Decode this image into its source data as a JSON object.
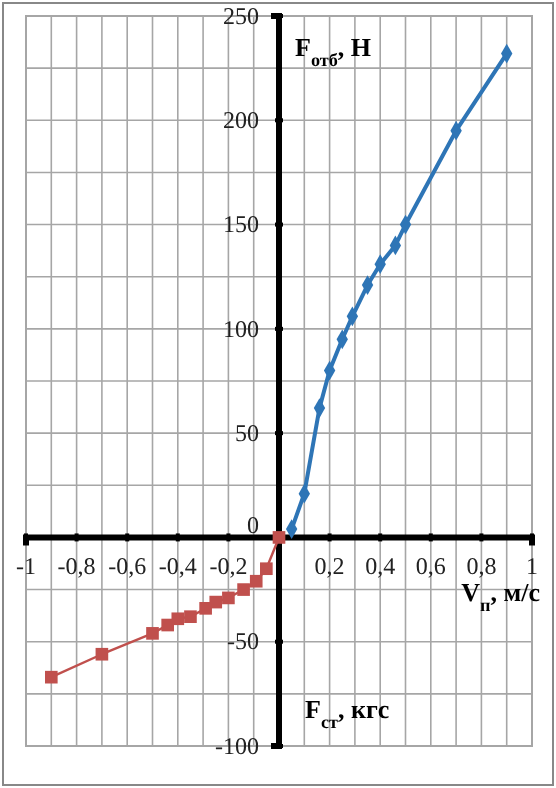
{
  "chart_data": {
    "type": "line",
    "ylabel": "F$_{отб}$, Н",
    "xlabel": "V$_{п}$, м/с",
    "annotations": [
      "F$_{ст}$, кгс"
    ],
    "xlim": [
      -1,
      1
    ],
    "ylim": [
      -100,
      250
    ],
    "xticks": [
      {
        "value": -1,
        "label": "-1"
      },
      {
        "value": -0.8,
        "label": "-0,8"
      },
      {
        "value": -0.6,
        "label": "-0,6"
      },
      {
        "value": -0.4,
        "label": "-0,4"
      },
      {
        "value": -0.2,
        "label": "-0,2"
      },
      {
        "value": 0,
        "label": null
      },
      {
        "value": 0.2,
        "label": "0,2"
      },
      {
        "value": 0.4,
        "label": "0,4"
      },
      {
        "value": 0.6,
        "label": "0,6"
      },
      {
        "value": 0.8,
        "label": "0,8"
      },
      {
        "value": 1,
        "label": "1"
      }
    ],
    "yticks": [
      -100,
      -50,
      0,
      50,
      100,
      150,
      200,
      250
    ],
    "grid": true,
    "line_style": "solid",
    "series": [
      {
        "color": "#2e75b6",
        "marker": "diamond",
        "x": [
          0.05,
          0.1,
          0.16,
          0.2,
          0.25,
          0.29,
          0.35,
          0.4,
          0.46,
          0.5,
          0.7,
          0.9
        ],
        "values": [
          4,
          21,
          62,
          80,
          95,
          106,
          121,
          131,
          140,
          150,
          195,
          232
        ]
      },
      {
        "color": "#c0504d",
        "marker": "square",
        "x": [
          0,
          -0.05,
          -0.09,
          -0.14,
          -0.2,
          -0.25,
          -0.29,
          -0.35,
          -0.4,
          -0.44,
          -0.5,
          -0.7,
          -0.9
        ],
        "values": [
          0,
          -15,
          -21,
          -25,
          -29,
          -31,
          -34,
          -38,
          -39,
          -42,
          -46,
          -56,
          -67
        ]
      }
    ]
  }
}
